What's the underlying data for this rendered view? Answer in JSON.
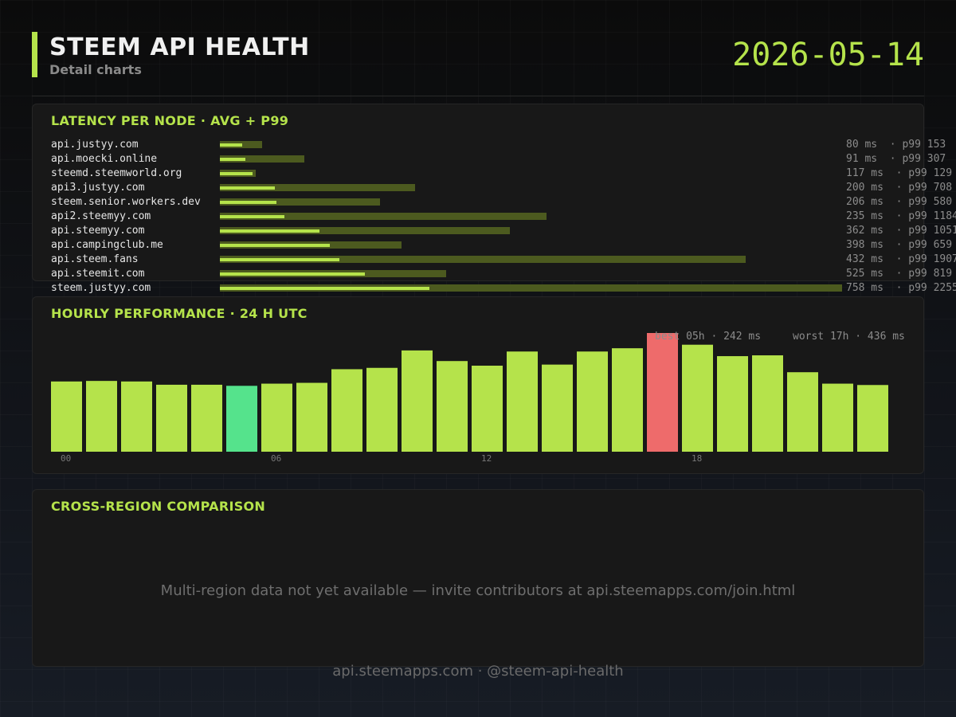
{
  "header": {
    "title": "STEEM API HEALTH",
    "subtitle": "Detail charts",
    "date": "2026-05-14"
  },
  "latency_panel": {
    "title": "LATENCY PER NODE  ·  AVG + P99"
  },
  "hourly_panel": {
    "title": "HOURLY PERFORMANCE  ·  24 H UTC",
    "best_label": "best 05h · 242 ms",
    "worst_label": "worst 17h · 436 ms"
  },
  "region_panel": {
    "title": "CROSS-REGION COMPARISON",
    "message": "Multi-region data not yet available — invite contributors at api.steemapps.com/join.html"
  },
  "footer": {
    "text": "api.steemapps.com  ·  @steem-api-health"
  },
  "colors": {
    "accent": "#b5e34b",
    "p99_bar": "#4c5a1f",
    "best": "#55e38c",
    "worst": "#ee6b6b"
  },
  "chart_data": [
    {
      "type": "bar",
      "title": "LATENCY PER NODE  ·  AVG + P99",
      "unit": "ms",
      "max_value": 2255,
      "categories": [
        "api.justyy.com",
        "api.moecki.online",
        "steemd.steemworld.org",
        "api3.justyy.com",
        "steem.senior.workers.dev",
        "api2.steemyy.com",
        "api.steemyy.com",
        "api.campingclub.me",
        "api.steem.fans",
        "api.steemit.com",
        "steem.justyy.com"
      ],
      "series": [
        {
          "name": "avg",
          "values": [
            80,
            91,
            117,
            200,
            206,
            235,
            362,
            398,
            432,
            525,
            758
          ]
        },
        {
          "name": "p99",
          "values": [
            153,
            307,
            129,
            708,
            580,
            1184,
            1051,
            659,
            1907,
            819,
            2255
          ]
        }
      ],
      "value_labels": [
        "80 ms  · p99 153",
        "91 ms  · p99 307",
        "117 ms  · p99 129",
        "200 ms  · p99 708",
        "206 ms  · p99 580",
        "235 ms  · p99 1184",
        "362 ms  · p99 1051",
        "398 ms  · p99 659",
        "432 ms  · p99 1907",
        "525 ms  · p99 819",
        "758 ms  · p99 2255"
      ]
    },
    {
      "type": "bar",
      "title": "HOURLY PERFORMANCE  ·  24 H UTC",
      "unit": "ms",
      "x": [
        "00",
        "01",
        "02",
        "03",
        "04",
        "05",
        "06",
        "07",
        "08",
        "09",
        "10",
        "11",
        "12",
        "13",
        "14",
        "15",
        "16",
        "17",
        "18",
        "19",
        "20",
        "21",
        "22",
        "23"
      ],
      "tick_labels": [
        "00",
        "06",
        "12",
        "18"
      ],
      "values": [
        258,
        260,
        258,
        246,
        246,
        242,
        250,
        253,
        303,
        308,
        372,
        333,
        316,
        368,
        320,
        368,
        380,
        436,
        393,
        351,
        354,
        292,
        250,
        245
      ],
      "best_hour": 5,
      "worst_hour": 17
    }
  ]
}
